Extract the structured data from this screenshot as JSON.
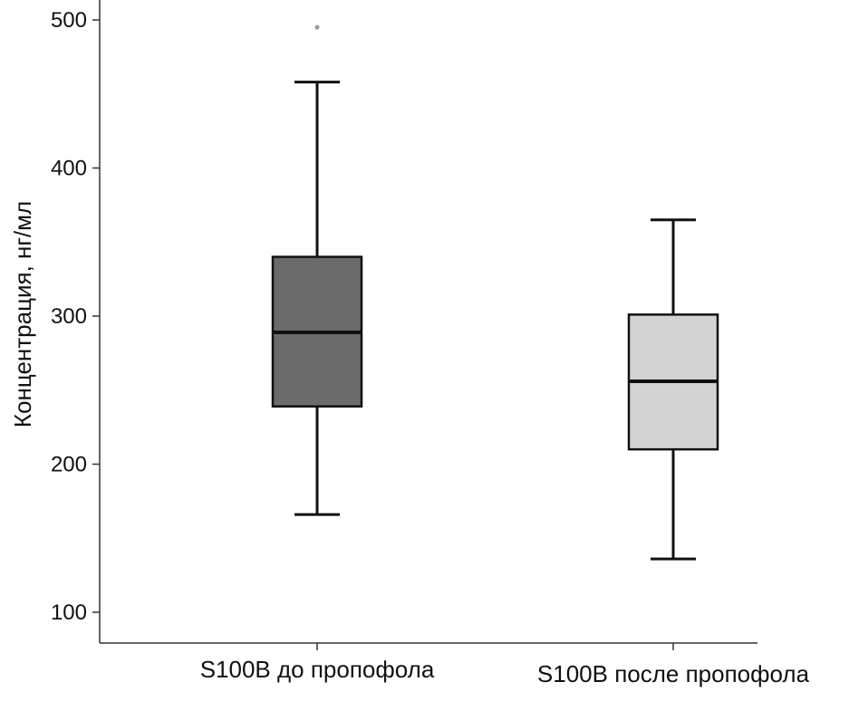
{
  "chart_data": {
    "type": "boxplot",
    "title": "",
    "xlabel": "",
    "ylabel": "Концентрация, нг/мл",
    "ylim": [
      80,
      520
    ],
    "yticks": [
      100,
      200,
      300,
      400,
      500
    ],
    "ytick_labels": [
      "100",
      "200",
      "300",
      "400",
      "500"
    ],
    "grid": false,
    "categories": [
      "S100B до пропофола",
      "S100B после пропофола"
    ],
    "boxes": [
      {
        "name": "S100B до пропофола",
        "whisker_low": 166,
        "q1": 239,
        "median": 289,
        "q3": 340,
        "whisker_high": 458,
        "outliers": [
          495
        ],
        "color": "#6b6b6b"
      },
      {
        "name": "S100B после пропофола",
        "whisker_low": 136,
        "q1": 210,
        "median": 256,
        "q3": 301,
        "whisker_high": 365,
        "outliers": [],
        "color": "#d3d3d3"
      }
    ],
    "outlier_color": "#999999"
  }
}
